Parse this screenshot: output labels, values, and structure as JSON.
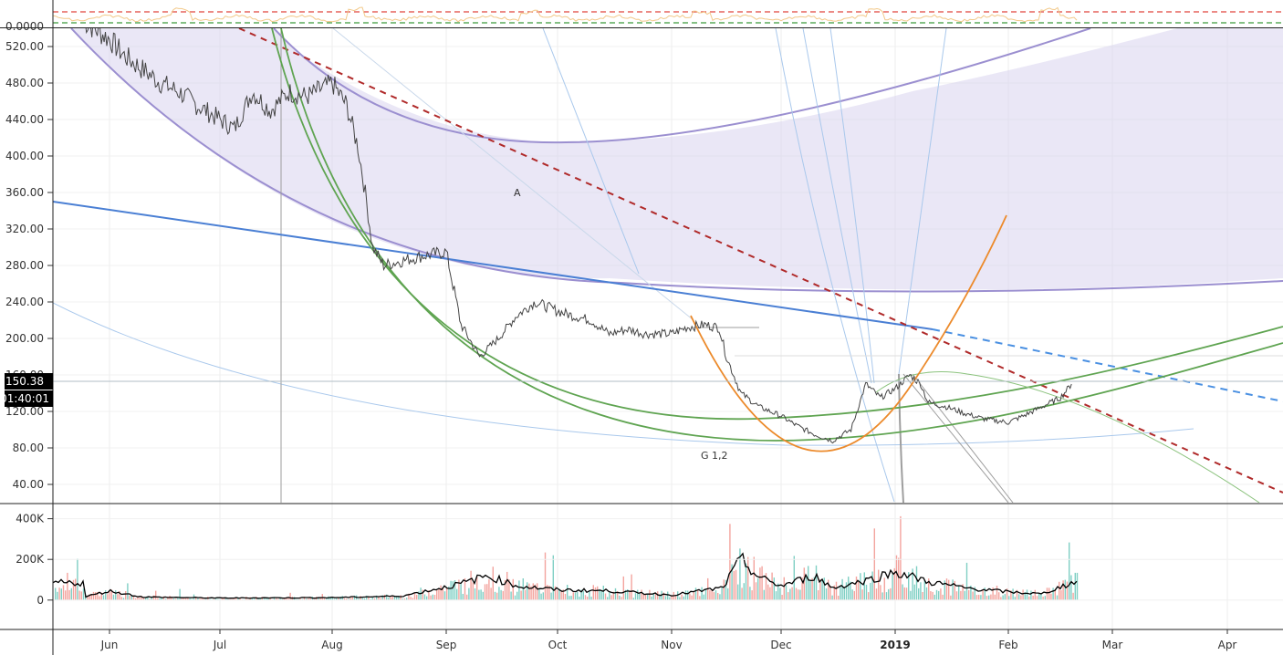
{
  "chart_data": [
    {
      "panel": "indicator",
      "type": "line",
      "y_tick_labels": [
        "0.0000"
      ],
      "reference_levels": {
        "upper": "dashed-red",
        "lower": "dashed-green"
      }
    },
    {
      "panel": "price",
      "type": "line",
      "y_tick_labels": [
        "520.00",
        "480.00",
        "440.00",
        "400.00",
        "360.00",
        "320.00",
        "280.00",
        "240.00",
        "200.00",
        "160.00",
        "120.00",
        "80.00",
        "40.00"
      ],
      "ylim": [
        20,
        540
      ],
      "x_tick_labels": [
        "Jun",
        "Jul",
        "Aug",
        "Sep",
        "Oct",
        "Nov",
        "Dec",
        "2019",
        "Feb",
        "Mar",
        "Apr"
      ],
      "current_price": "150.38",
      "countdown": "01:40:01",
      "annotations": [
        "A",
        "G 1,2"
      ],
      "series_points": [
        [
          "May 25",
          548
        ],
        [
          "Jun 1",
          528
        ],
        [
          "Jun 5",
          510
        ],
        [
          "Jun 10",
          495
        ],
        [
          "Jun 15",
          480
        ],
        [
          "Jun 20",
          470
        ],
        [
          "Jun 25",
          455
        ],
        [
          "Jul 1",
          440
        ],
        [
          "Jul 5",
          430
        ],
        [
          "Jul 10",
          470
        ],
        [
          "Jul 15",
          450
        ],
        [
          "Jul 20",
          470
        ],
        [
          "Jul 25",
          465
        ],
        [
          "Aug 1",
          480
        ],
        [
          "Aug 5",
          455
        ],
        [
          "Aug 8",
          410
        ],
        [
          "Aug 10",
          360
        ],
        [
          "Aug 12",
          300
        ],
        [
          "Aug 15",
          280
        ],
        [
          "Aug 20",
          285
        ],
        [
          "Aug 25",
          290
        ],
        [
          "Sep 1",
          295
        ],
        [
          "Sep 5",
          215
        ],
        [
          "Sep 10",
          180
        ],
        [
          "Sep 15",
          200
        ],
        [
          "Sep 20",
          225
        ],
        [
          "Sep 25",
          240
        ],
        [
          "Oct 1",
          230
        ],
        [
          "Oct 5",
          225
        ],
        [
          "Oct 10",
          220
        ],
        [
          "Oct 15",
          205
        ],
        [
          "Oct 20",
          210
        ],
        [
          "Oct 25",
          205
        ],
        [
          "Nov 1",
          205
        ],
        [
          "Nov 5",
          212
        ],
        [
          "Nov 10",
          215
        ],
        [
          "Nov 14",
          212
        ],
        [
          "Nov 16",
          180
        ],
        [
          "Nov 20",
          140
        ],
        [
          "Nov 25",
          125
        ],
        [
          "Dec 1",
          115
        ],
        [
          "Dec 5",
          105
        ],
        [
          "Dec 10",
          95
        ],
        [
          "Dec 15",
          88
        ],
        [
          "Dec 20",
          100
        ],
        [
          "Dec 24",
          150
        ],
        [
          "Dec 28",
          135
        ],
        [
          "Jan 1",
          145
        ],
        [
          "Jan 5",
          160
        ],
        [
          "Jan 8",
          150
        ],
        [
          "Jan 10",
          130
        ],
        [
          "Jan 15",
          125
        ],
        [
          "Jan 20",
          118
        ],
        [
          "Jan 25",
          112
        ],
        [
          "Feb 1",
          108
        ],
        [
          "Feb 5",
          115
        ],
        [
          "Feb 10",
          125
        ],
        [
          "Feb 15",
          135
        ],
        [
          "Feb 18",
          150
        ]
      ]
    },
    {
      "panel": "volume",
      "type": "bar",
      "y_tick_labels": [
        "400K",
        "200K",
        "0"
      ],
      "ylim": [
        -140000,
        470000
      ],
      "colors": {
        "up": "#7fcfc4",
        "down": "#f3a49e",
        "ma": "#000000"
      },
      "ma_points": [
        [
          "May 25",
          15000
        ],
        [
          "Jun 1",
          45000
        ],
        [
          "Jun 10",
          15000
        ],
        [
          "Jul 1",
          10000
        ],
        [
          "Aug 1",
          12000
        ],
        [
          "Aug 20",
          20000
        ],
        [
          "Sep 5",
          80000
        ],
        [
          "Sep 12",
          120000
        ],
        [
          "Sep 20",
          70000
        ],
        [
          "Oct 1",
          50000
        ],
        [
          "Oct 15",
          45000
        ],
        [
          "Nov 1",
          25000
        ],
        [
          "Nov 15",
          60000
        ],
        [
          "Nov 20",
          200000
        ],
        [
          "Nov 25",
          110000
        ],
        [
          "Dec 1",
          70000
        ],
        [
          "Dec 10",
          120000
        ],
        [
          "Dec 15",
          60000
        ],
        [
          "Dec 25",
          100000
        ],
        [
          "Jan 1",
          140000
        ],
        [
          "Jan 10",
          90000
        ],
        [
          "Jan 20",
          60000
        ],
        [
          "Feb 1",
          40000
        ],
        [
          "Feb 10",
          30000
        ],
        [
          "Feb 18",
          85000
        ]
      ]
    }
  ]
}
